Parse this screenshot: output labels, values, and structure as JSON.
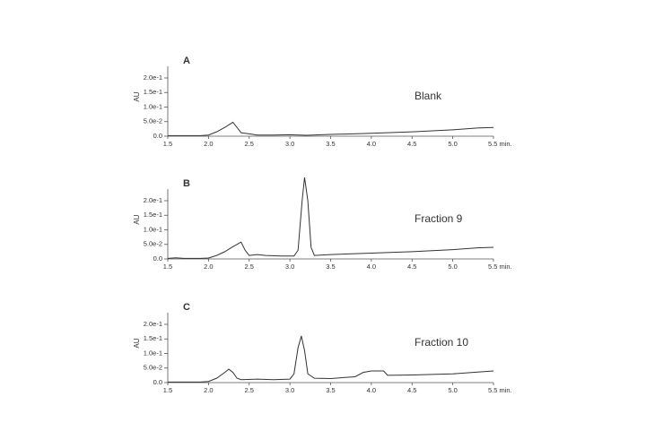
{
  "chart_data": [
    {
      "type": "line",
      "panel_label": "A",
      "annotation": "Blank",
      "ylabel": "AU",
      "color": "#333333",
      "x": [
        1.5,
        1.7,
        1.9,
        2.0,
        2.1,
        2.2,
        2.3,
        2.35,
        2.4,
        2.5,
        2.6,
        2.8,
        3.0,
        3.2,
        3.5,
        4.0,
        4.5,
        5.0,
        5.3,
        5.5
      ],
      "values": [
        0.002,
        0.002,
        0.002,
        0.004,
        0.015,
        0.03,
        0.048,
        0.03,
        0.012,
        0.008,
        0.004,
        0.004,
        0.005,
        0.003,
        0.006,
        0.01,
        0.015,
        0.022,
        0.028,
        0.03
      ],
      "xlim": [
        1.5,
        5.5
      ],
      "ylim": [
        0,
        0.24
      ],
      "xticks": [
        1.5,
        {
          "value": 2,
          "label": "2.0"
        },
        2.5,
        {
          "value": 3,
          "label": "3.0"
        },
        3.5,
        {
          "value": 4,
          "label": "4.0"
        },
        4.5,
        {
          "value": 5,
          "label": "5.0"
        },
        {
          "value": 5.5,
          "label": "5.5 min."
        }
      ],
      "yticks": [
        {
          "value": 0,
          "label": "0.0"
        },
        {
          "value": 0.05,
          "label": "5.0e-2"
        },
        {
          "value": 0.1,
          "label": "1.0e-1"
        },
        {
          "value": 0.15,
          "label": "1.5e-1"
        },
        {
          "value": 0.2,
          "label": "2.0e-1"
        }
      ]
    },
    {
      "type": "line",
      "panel_label": "B",
      "annotation": "Fraction 9",
      "ylabel": "AU",
      "color": "#333333",
      "x": [
        1.5,
        1.6,
        1.7,
        1.9,
        2.0,
        2.1,
        2.2,
        2.3,
        2.4,
        2.45,
        2.5,
        2.6,
        2.7,
        2.9,
        3.05,
        3.1,
        3.15,
        3.18,
        3.22,
        3.26,
        3.3,
        3.5,
        4.0,
        4.5,
        5.0,
        5.3,
        5.5
      ],
      "values": [
        0.002,
        0.004,
        0.002,
        0.002,
        0.003,
        0.012,
        0.025,
        0.042,
        0.058,
        0.03,
        0.012,
        0.015,
        0.012,
        0.01,
        0.01,
        0.03,
        0.2,
        0.28,
        0.2,
        0.04,
        0.012,
        0.015,
        0.02,
        0.025,
        0.032,
        0.038,
        0.04
      ],
      "xlim": [
        1.5,
        5.5
      ],
      "ylim": [
        0,
        0.24
      ],
      "xticks": [
        1.5,
        {
          "value": 2,
          "label": "2.0"
        },
        2.5,
        {
          "value": 3,
          "label": "3.0"
        },
        3.5,
        {
          "value": 4,
          "label": "4.0"
        },
        4.5,
        {
          "value": 5,
          "label": "5.0"
        },
        {
          "value": 5.5,
          "label": "5.5 min."
        }
      ],
      "yticks": [
        {
          "value": 0,
          "label": "0.0"
        },
        {
          "value": 0.05,
          "label": "5.0e-2"
        },
        {
          "value": 0.1,
          "label": "1.0e-1"
        },
        {
          "value": 0.15,
          "label": "1.5e-1"
        },
        {
          "value": 0.2,
          "label": "2.0e-1"
        }
      ]
    },
    {
      "type": "line",
      "panel_label": "C",
      "annotation": "Fraction 10",
      "ylabel": "AU",
      "color": "#333333",
      "x": [
        1.5,
        1.9,
        2.0,
        2.1,
        2.2,
        2.25,
        2.3,
        2.35,
        2.4,
        2.6,
        2.8,
        3.0,
        3.05,
        3.1,
        3.14,
        3.18,
        3.22,
        3.3,
        3.5,
        3.8,
        3.9,
        4.0,
        4.15,
        4.2,
        4.5,
        5.0,
        5.5
      ],
      "values": [
        0.002,
        0.002,
        0.004,
        0.015,
        0.035,
        0.046,
        0.035,
        0.015,
        0.01,
        0.012,
        0.01,
        0.012,
        0.03,
        0.12,
        0.16,
        0.11,
        0.03,
        0.015,
        0.014,
        0.02,
        0.035,
        0.04,
        0.04,
        0.025,
        0.026,
        0.03,
        0.04
      ],
      "xlim": [
        1.5,
        5.5
      ],
      "ylim": [
        0,
        0.24
      ],
      "xticks": [
        1.5,
        {
          "value": 2,
          "label": "2.0"
        },
        2.5,
        {
          "value": 3,
          "label": "3.0"
        },
        3.5,
        {
          "value": 4,
          "label": "4.0"
        },
        4.5,
        {
          "value": 5,
          "label": "5.0"
        },
        {
          "value": 5.5,
          "label": "5.5 min."
        }
      ],
      "yticks": [
        {
          "value": 0,
          "label": "0.0"
        },
        {
          "value": 0.05,
          "label": "5.0e-2"
        },
        {
          "value": 0.1,
          "label": "1.0e-1"
        },
        {
          "value": 0.15,
          "label": "1.5e-1"
        },
        {
          "value": 0.2,
          "label": "2.0e-1"
        }
      ]
    }
  ]
}
